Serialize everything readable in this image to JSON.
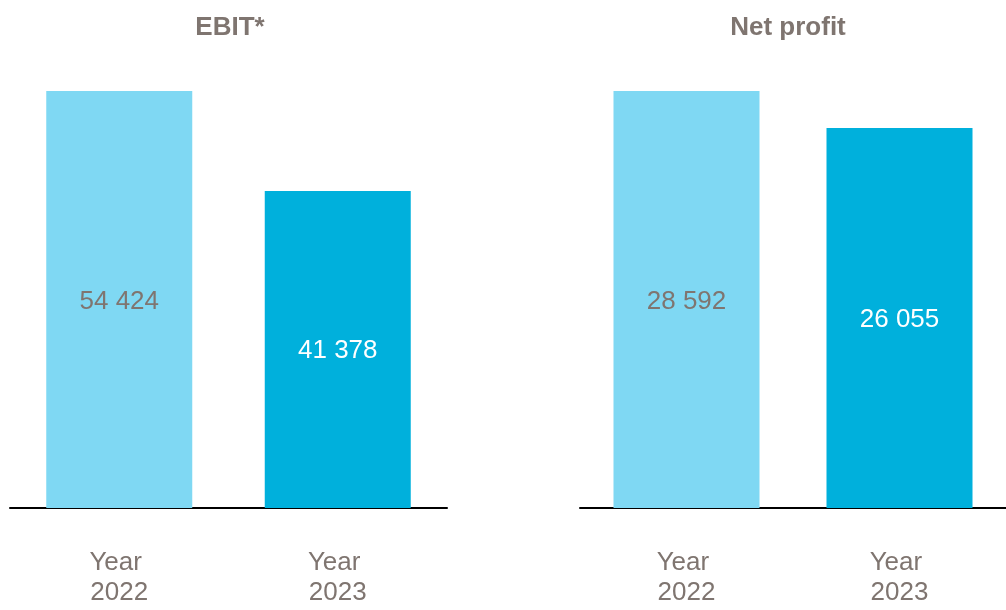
{
  "chart_data": [
    {
      "type": "bar",
      "title": "EBIT*",
      "categories": [
        "Year 2022",
        "Year 2023"
      ],
      "values": [
        54424,
        41378
      ],
      "colors": [
        "#7fd8f3",
        "#00b0dc"
      ],
      "value_labels": [
        "54 424",
        "41 378"
      ]
    },
    {
      "type": "bar",
      "title": "Net profit",
      "categories": [
        "Year 2022",
        "Year 2023"
      ],
      "values": [
        28592,
        26055
      ],
      "colors": [
        "#7fd8f3",
        "#00b0dc"
      ],
      "value_labels": [
        "28 592",
        "26 055"
      ]
    }
  ]
}
